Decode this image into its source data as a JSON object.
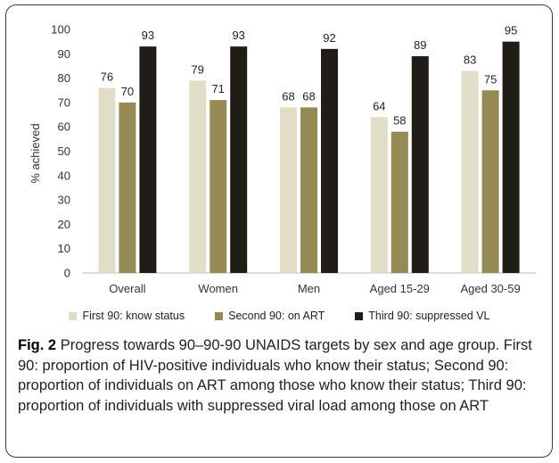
{
  "chart_data": {
    "type": "bar",
    "categories": [
      "Overall",
      "Women",
      "Men",
      "Aged 15-29",
      "Aged 30-59"
    ],
    "series": [
      {
        "name": "First 90: know status",
        "values": [
          76,
          79,
          68,
          64,
          83
        ],
        "color": "#e2ddc7"
      },
      {
        "name": "Second 90: on ART",
        "values": [
          70,
          71,
          68,
          58,
          75
        ],
        "color": "#958a53"
      },
      {
        "name": "Third 90: suppressed VL",
        "values": [
          93,
          93,
          92,
          89,
          95
        ],
        "color": "#1f1d15"
      }
    ],
    "ylabel": "% achieved",
    "xlabel": "",
    "ylim": [
      0,
      100
    ],
    "yticks": [
      0,
      10,
      20,
      30,
      40,
      50,
      60,
      70,
      80,
      90,
      100
    ],
    "grid": false,
    "legend_position": "bottom"
  },
  "caption": {
    "label": "Fig. 2",
    "text": "Progress towards 90–90-90 UNAIDS targets by sex and age group. First 90: proportion of HIV-positive individuals who know their status; Second 90: proportion of individuals on ART among those who know their status; Third 90: proportion of individuals with suppressed viral load among those on ART"
  }
}
